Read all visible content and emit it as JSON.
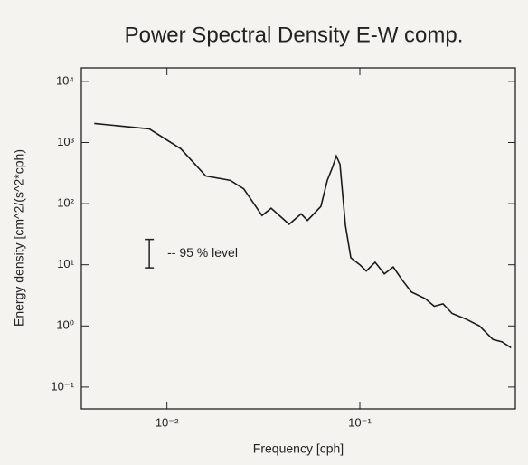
{
  "chart_data": {
    "type": "line",
    "title": "Power Spectral Density  E-W comp.",
    "xlabel": "Frequency [cph]",
    "ylabel": "Energy density [cm^2/(s^2*cph)",
    "log_x": true,
    "log_y": true,
    "xlim": [
      0.0036,
      0.64
    ],
    "ylim": [
      0.044,
      16600
    ],
    "xticks": [
      {
        "value": 0.01,
        "label": "10⁻²"
      },
      {
        "value": 0.1,
        "label": "10⁻¹"
      }
    ],
    "yticks": [
      {
        "value": 0.1,
        "label": "10⁻¹"
      },
      {
        "value": 1,
        "label": "10⁰"
      },
      {
        "value": 10,
        "label": "10¹"
      },
      {
        "value": 100,
        "label": "10²"
      },
      {
        "value": 1000,
        "label": "10³"
      },
      {
        "value": 10000,
        "label": "10⁴"
      }
    ],
    "x": [
      0.0042,
      0.0081,
      0.0118,
      0.0159,
      0.0213,
      0.025,
      0.0311,
      0.0347,
      0.043,
      0.0496,
      0.0535,
      0.0628,
      0.0678,
      0.0723,
      0.0755,
      0.0789,
      0.0842,
      0.0898,
      0.1,
      0.108,
      0.12,
      0.134,
      0.149,
      0.166,
      0.185,
      0.218,
      0.243,
      0.27,
      0.301,
      0.354,
      0.417,
      0.49,
      0.546,
      0.608
    ],
    "series": [
      {
        "color": "#1a1a1a",
        "values": [
          2050,
          1670,
          790,
          283,
          240,
          175,
          64,
          84,
          46,
          68,
          53,
          90,
          240,
          400,
          600,
          440,
          44,
          13,
          10,
          7.9,
          11,
          7.1,
          9.2,
          5.6,
          3.6,
          2.8,
          2.1,
          2.3,
          1.6,
          1.3,
          1.0,
          0.6,
          0.55,
          0.44
        ]
      }
    ],
    "errorbar": {
      "x": 0.0081,
      "low": 8.9,
      "high": 26,
      "label": "-- 95 % level"
    }
  }
}
